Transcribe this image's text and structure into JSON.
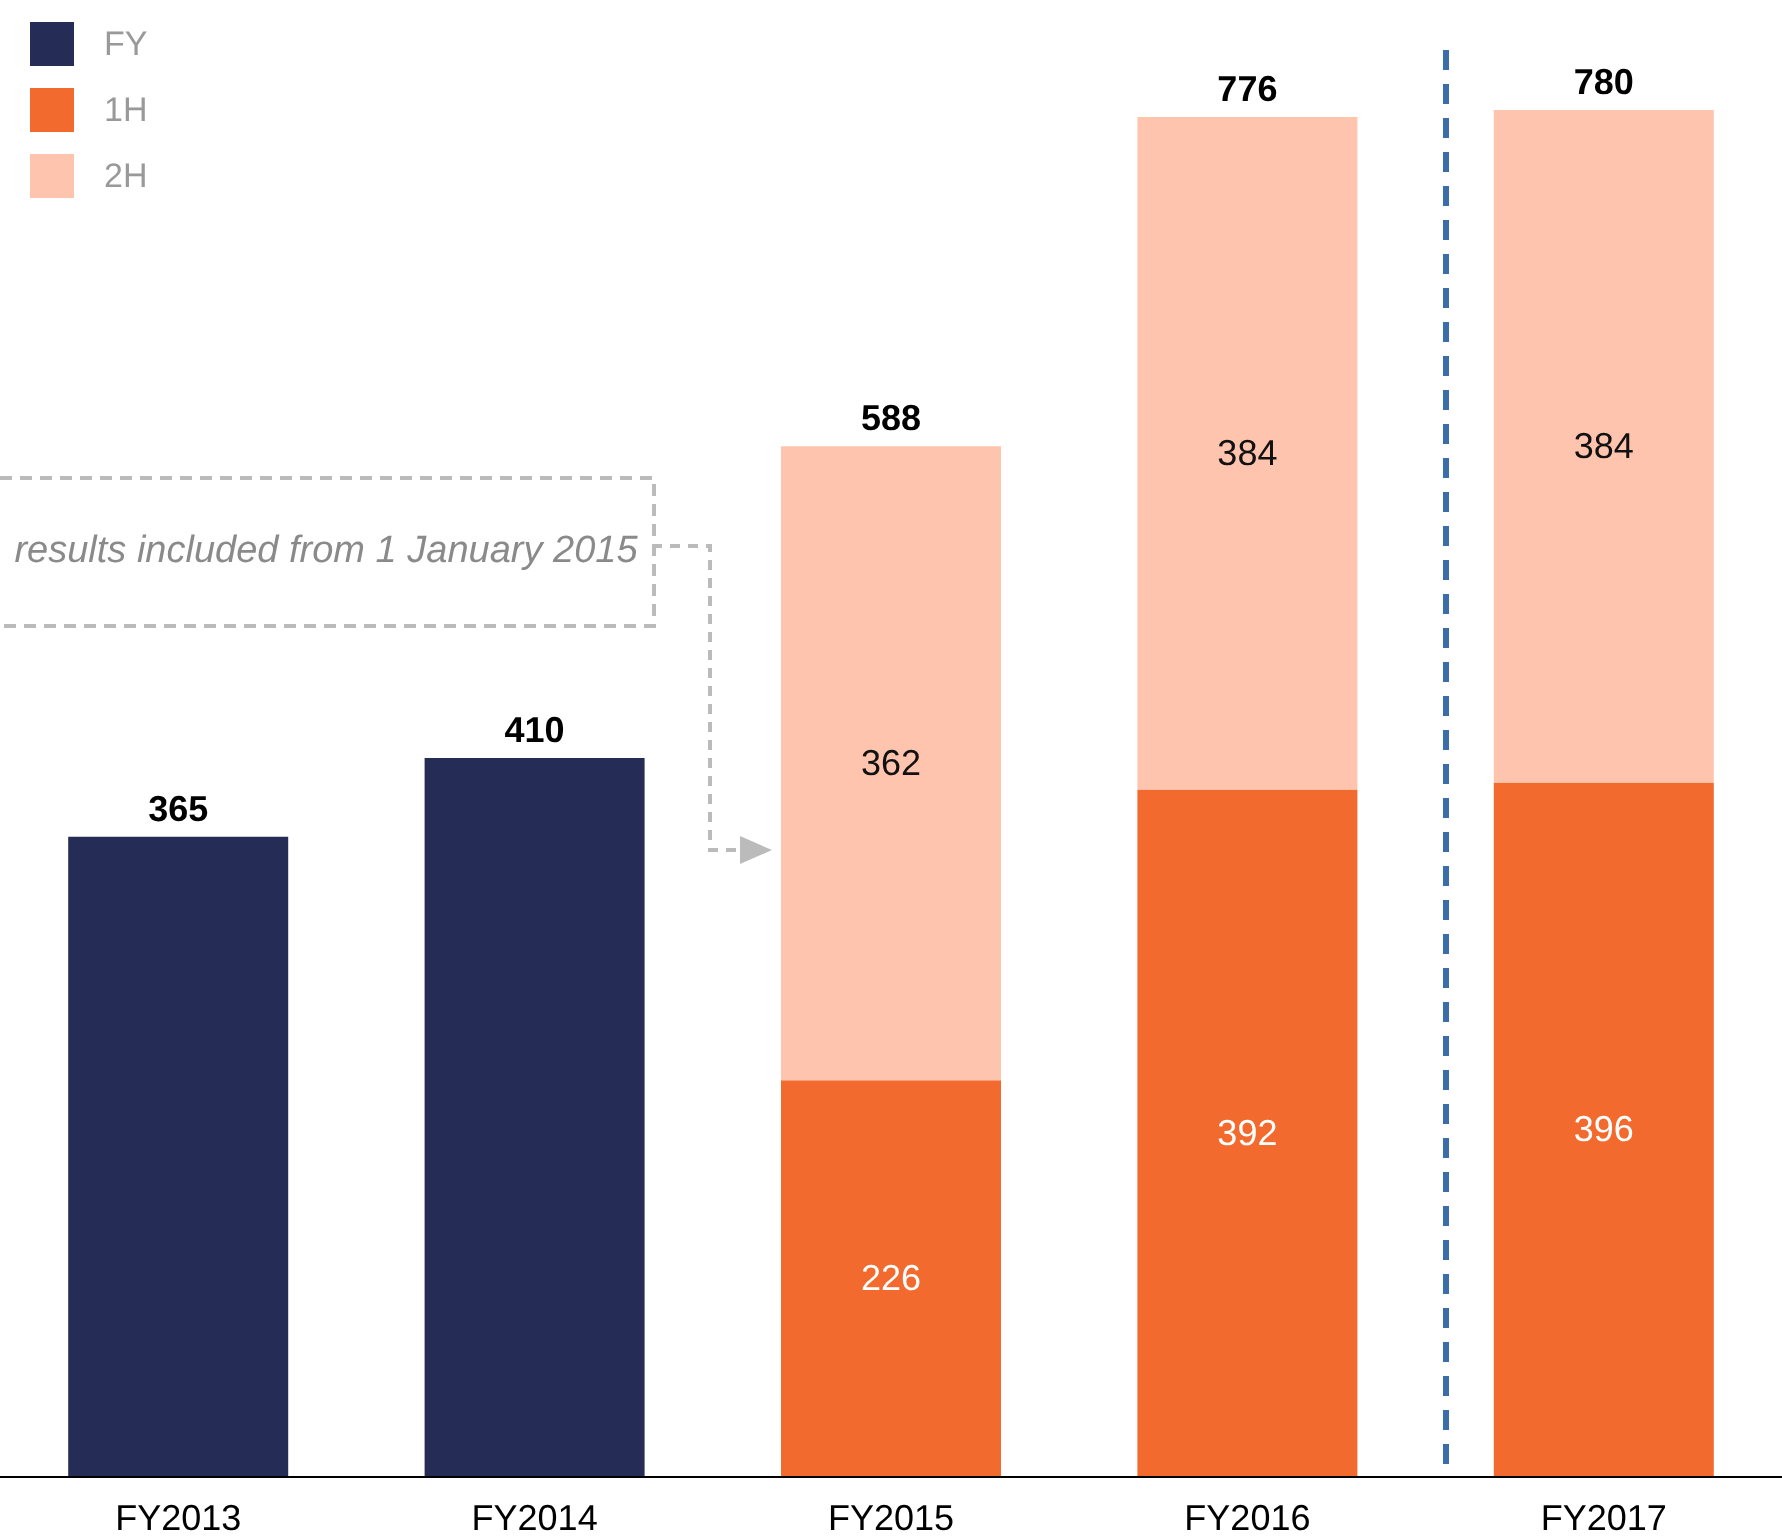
{
  "chart_data": {
    "type": "bar",
    "stacked": true,
    "categories": [
      "FY2013",
      "FY2014",
      "FY2015",
      "FY2016",
      "FY2017"
    ],
    "series": [
      {
        "name": "FY",
        "color": "#252d56",
        "values": [
          365,
          410,
          null,
          null,
          null
        ],
        "value_labels": [
          null,
          null,
          null,
          null,
          null
        ]
      },
      {
        "name": "1H",
        "color": "#f26a2e",
        "values": [
          null,
          null,
          226,
          392,
          396
        ],
        "value_labels": [
          null,
          null,
          "226",
          "392",
          "396"
        ]
      },
      {
        "name": "2H",
        "color": "#ffc4ae",
        "values": [
          null,
          null,
          362,
          384,
          384
        ],
        "value_labels": [
          null,
          null,
          "362",
          "384",
          "384"
        ]
      }
    ],
    "totals": [
      "365",
      "410",
      "588",
      "776",
      "780"
    ],
    "annotations": [
      "results included from 1 January 2015"
    ],
    "legend": "top left"
  }
}
